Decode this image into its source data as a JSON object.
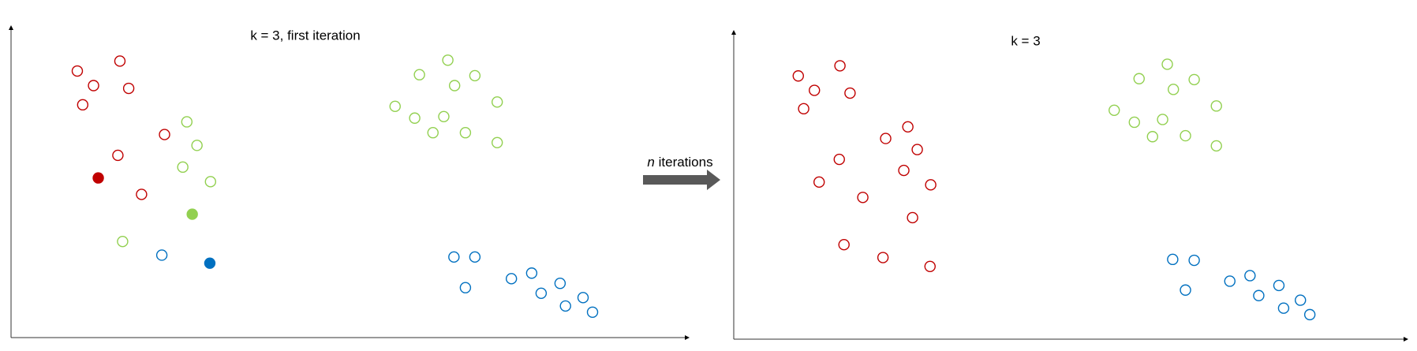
{
  "chart_data": [
    {
      "type": "scatter",
      "title": "k = 3, first iteration",
      "xlim": [
        0,
        100
      ],
      "ylim": [
        0,
        100
      ],
      "series": [
        {
          "color": "#c00000",
          "filled": false,
          "x": [
            9.8,
            16.1,
            12.2,
            17.4,
            10.6,
            22.7,
            15.8,
            19.3
          ],
          "values": [
            86.0,
            89.2,
            81.3,
            80.4,
            75.1,
            65.5,
            58.8,
            46.2
          ]
        },
        {
          "color": "#92d050",
          "filled": false,
          "x": [
            26.0,
            27.5,
            25.4,
            29.5,
            16.5,
            64.6,
            60.4,
            68.6,
            65.6,
            71.9,
            56.8,
            59.7,
            64.0,
            62.4,
            67.2,
            71.9
          ],
          "values": [
            69.6,
            62.0,
            55.0,
            50.3,
            31.0,
            89.5,
            84.8,
            84.5,
            81.3,
            76.0,
            74.6,
            70.8,
            71.3,
            66.1,
            66.1,
            62.9
          ]
        },
        {
          "color": "#0070c0",
          "filled": false,
          "x": [
            22.3,
            65.5,
            68.6,
            67.2,
            74.0,
            77.0,
            78.4,
            81.2,
            82.0,
            84.6,
            86.0
          ],
          "values": [
            26.6,
            26.0,
            26.0,
            16.1,
            19.0,
            20.8,
            14.3,
            17.5,
            10.2,
            12.9,
            8.2
          ]
        },
        {
          "color": "#c00000",
          "filled": true,
          "x": [
            12.9
          ],
          "values": [
            51.5
          ]
        },
        {
          "color": "#92d050",
          "filled": true,
          "x": [
            26.8
          ],
          "values": [
            39.8
          ]
        },
        {
          "color": "#0070c0",
          "filled": true,
          "x": [
            29.4
          ],
          "values": [
            24.0
          ]
        }
      ]
    },
    {
      "type": "scatter",
      "title": "k = 3",
      "xlim": [
        0,
        100
      ],
      "ylim": [
        0,
        100
      ],
      "series": [
        {
          "color": "#c00000",
          "filled": false,
          "x": [
            9.6,
            15.8,
            12.0,
            17.3,
            10.4,
            25.9,
            22.6,
            27.3,
            15.7,
            25.3,
            12.7,
            29.3,
            19.2,
            26.6,
            16.4,
            22.2,
            29.2
          ],
          "values": [
            85.8,
            89.1,
            81.1,
            80.2,
            75.1,
            69.2,
            65.4,
            61.8,
            58.6,
            55.0,
            51.2,
            50.3,
            46.2,
            39.6,
            30.8,
            26.6,
            23.7
          ]
        },
        {
          "color": "#92d050",
          "filled": false,
          "x": [
            64.5,
            60.3,
            68.5,
            65.4,
            71.8,
            56.6,
            59.6,
            63.8,
            62.3,
            67.2,
            71.8
          ],
          "values": [
            89.6,
            84.9,
            84.6,
            81.4,
            76.0,
            74.6,
            70.7,
            71.6,
            66.0,
            66.3,
            63.0
          ]
        },
        {
          "color": "#0070c0",
          "filled": false,
          "x": [
            65.3,
            68.5,
            67.2,
            73.8,
            76.8,
            78.1,
            81.1,
            81.8,
            84.3,
            85.7
          ],
          "values": [
            26.0,
            25.7,
            16.0,
            18.9,
            20.7,
            14.2,
            17.5,
            10.1,
            12.7,
            8.0
          ]
        }
      ]
    }
  ],
  "annotation": {
    "italic": "n",
    "text": "iterations"
  }
}
